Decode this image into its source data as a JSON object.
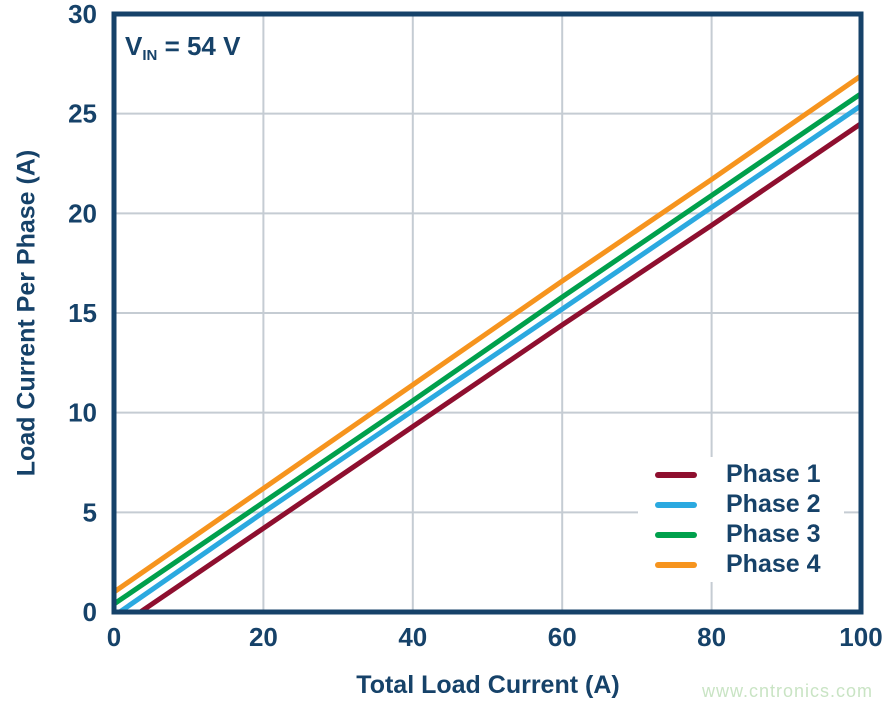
{
  "colors": {
    "navy": "#164269",
    "grid": "#C5CCD3",
    "background": "#FFFFFF"
  },
  "chart_data": {
    "type": "line",
    "title": "",
    "annotation": {
      "v": "V",
      "sub": "IN",
      "rest": " = 54 V"
    },
    "x_label": "Total Load Current (A)",
    "y_label": "Load Current Per Phase (A)",
    "xlim": [
      0,
      100
    ],
    "ylim": [
      0,
      30
    ],
    "x_ticks": [
      0,
      20,
      40,
      60,
      80,
      100
    ],
    "y_ticks": [
      0,
      5,
      10,
      15,
      20,
      25,
      30
    ],
    "grid": "on",
    "legend_position": "inside bottom-right",
    "x": [
      0,
      20,
      40,
      60,
      80,
      100
    ],
    "series": [
      {
        "name": "Phase 1",
        "color": "#8E0F2F",
        "values": [
          -0.9,
          4.2,
          9.3,
          14.4,
          19.4,
          24.5
        ]
      },
      {
        "name": "Phase 2",
        "color": "#2BA9E0",
        "values": [
          -0.2,
          5.0,
          10.1,
          15.2,
          20.3,
          25.4
        ]
      },
      {
        "name": "Phase 3",
        "color": "#00A04C",
        "values": [
          0.4,
          5.5,
          10.6,
          15.8,
          20.9,
          26.0
        ]
      },
      {
        "name": "Phase 4",
        "color": "#F6941E",
        "values": [
          1.0,
          6.2,
          11.4,
          16.6,
          21.7,
          26.9
        ]
      }
    ]
  },
  "watermark": {
    "text": "www.cntronics.com",
    "color": "#C9E4C4"
  }
}
